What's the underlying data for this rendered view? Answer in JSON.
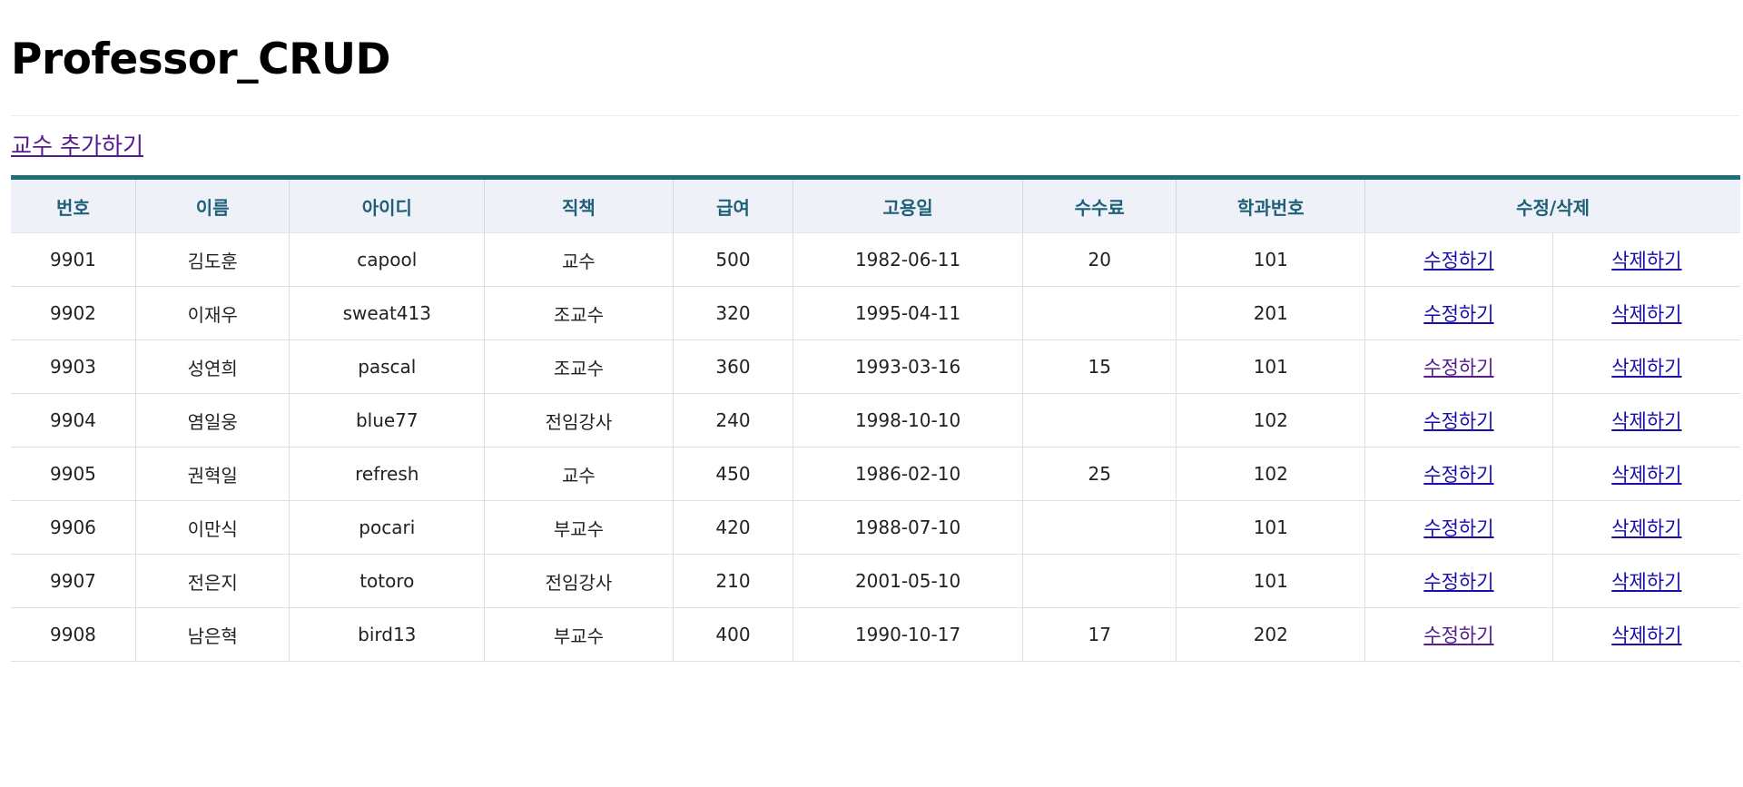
{
  "page": {
    "title": "Professor_CRUD",
    "add_link": "교수 추가하기"
  },
  "table": {
    "headers": [
      "번호",
      "이름",
      "아이디",
      "직책",
      "급여",
      "고용일",
      "수수료",
      "학과번호",
      "수정/삭제"
    ],
    "edit_label": "수정하기",
    "delete_label": "삭제하기",
    "rows": [
      {
        "no": "9901",
        "name": "김도훈",
        "id": "capool",
        "position": "교수",
        "pay": "500",
        "hiredate": "1982-06-11",
        "bonus": "20",
        "deptno": "101",
        "edit_visited": false
      },
      {
        "no": "9902",
        "name": "이재우",
        "id": "sweat413",
        "position": "조교수",
        "pay": "320",
        "hiredate": "1995-04-11",
        "bonus": "",
        "deptno": "201",
        "edit_visited": false
      },
      {
        "no": "9903",
        "name": "성연희",
        "id": "pascal",
        "position": "조교수",
        "pay": "360",
        "hiredate": "1993-03-16",
        "bonus": "15",
        "deptno": "101",
        "edit_visited": true
      },
      {
        "no": "9904",
        "name": "염일웅",
        "id": "blue77",
        "position": "전임강사",
        "pay": "240",
        "hiredate": "1998-10-10",
        "bonus": "",
        "deptno": "102",
        "edit_visited": false
      },
      {
        "no": "9905",
        "name": "권혁일",
        "id": "refresh",
        "position": "교수",
        "pay": "450",
        "hiredate": "1986-02-10",
        "bonus": "25",
        "deptno": "102",
        "edit_visited": false
      },
      {
        "no": "9906",
        "name": "이만식",
        "id": "pocari",
        "position": "부교수",
        "pay": "420",
        "hiredate": "1988-07-10",
        "bonus": "",
        "deptno": "101",
        "edit_visited": false
      },
      {
        "no": "9907",
        "name": "전은지",
        "id": "totoro",
        "position": "전임강사",
        "pay": "210",
        "hiredate": "2001-05-10",
        "bonus": "",
        "deptno": "101",
        "edit_visited": false
      },
      {
        "no": "9908",
        "name": "남은혁",
        "id": "bird13",
        "position": "부교수",
        "pay": "400",
        "hiredate": "1990-10-17",
        "bonus": "17",
        "deptno": "202",
        "edit_visited": true
      }
    ]
  },
  "colors": {
    "header_text": "#1f5f78",
    "header_bg": "#eef1f8",
    "table_top_border": "#1f6d7b",
    "link": "#1a0dab",
    "visited_link": "#551a8b"
  }
}
